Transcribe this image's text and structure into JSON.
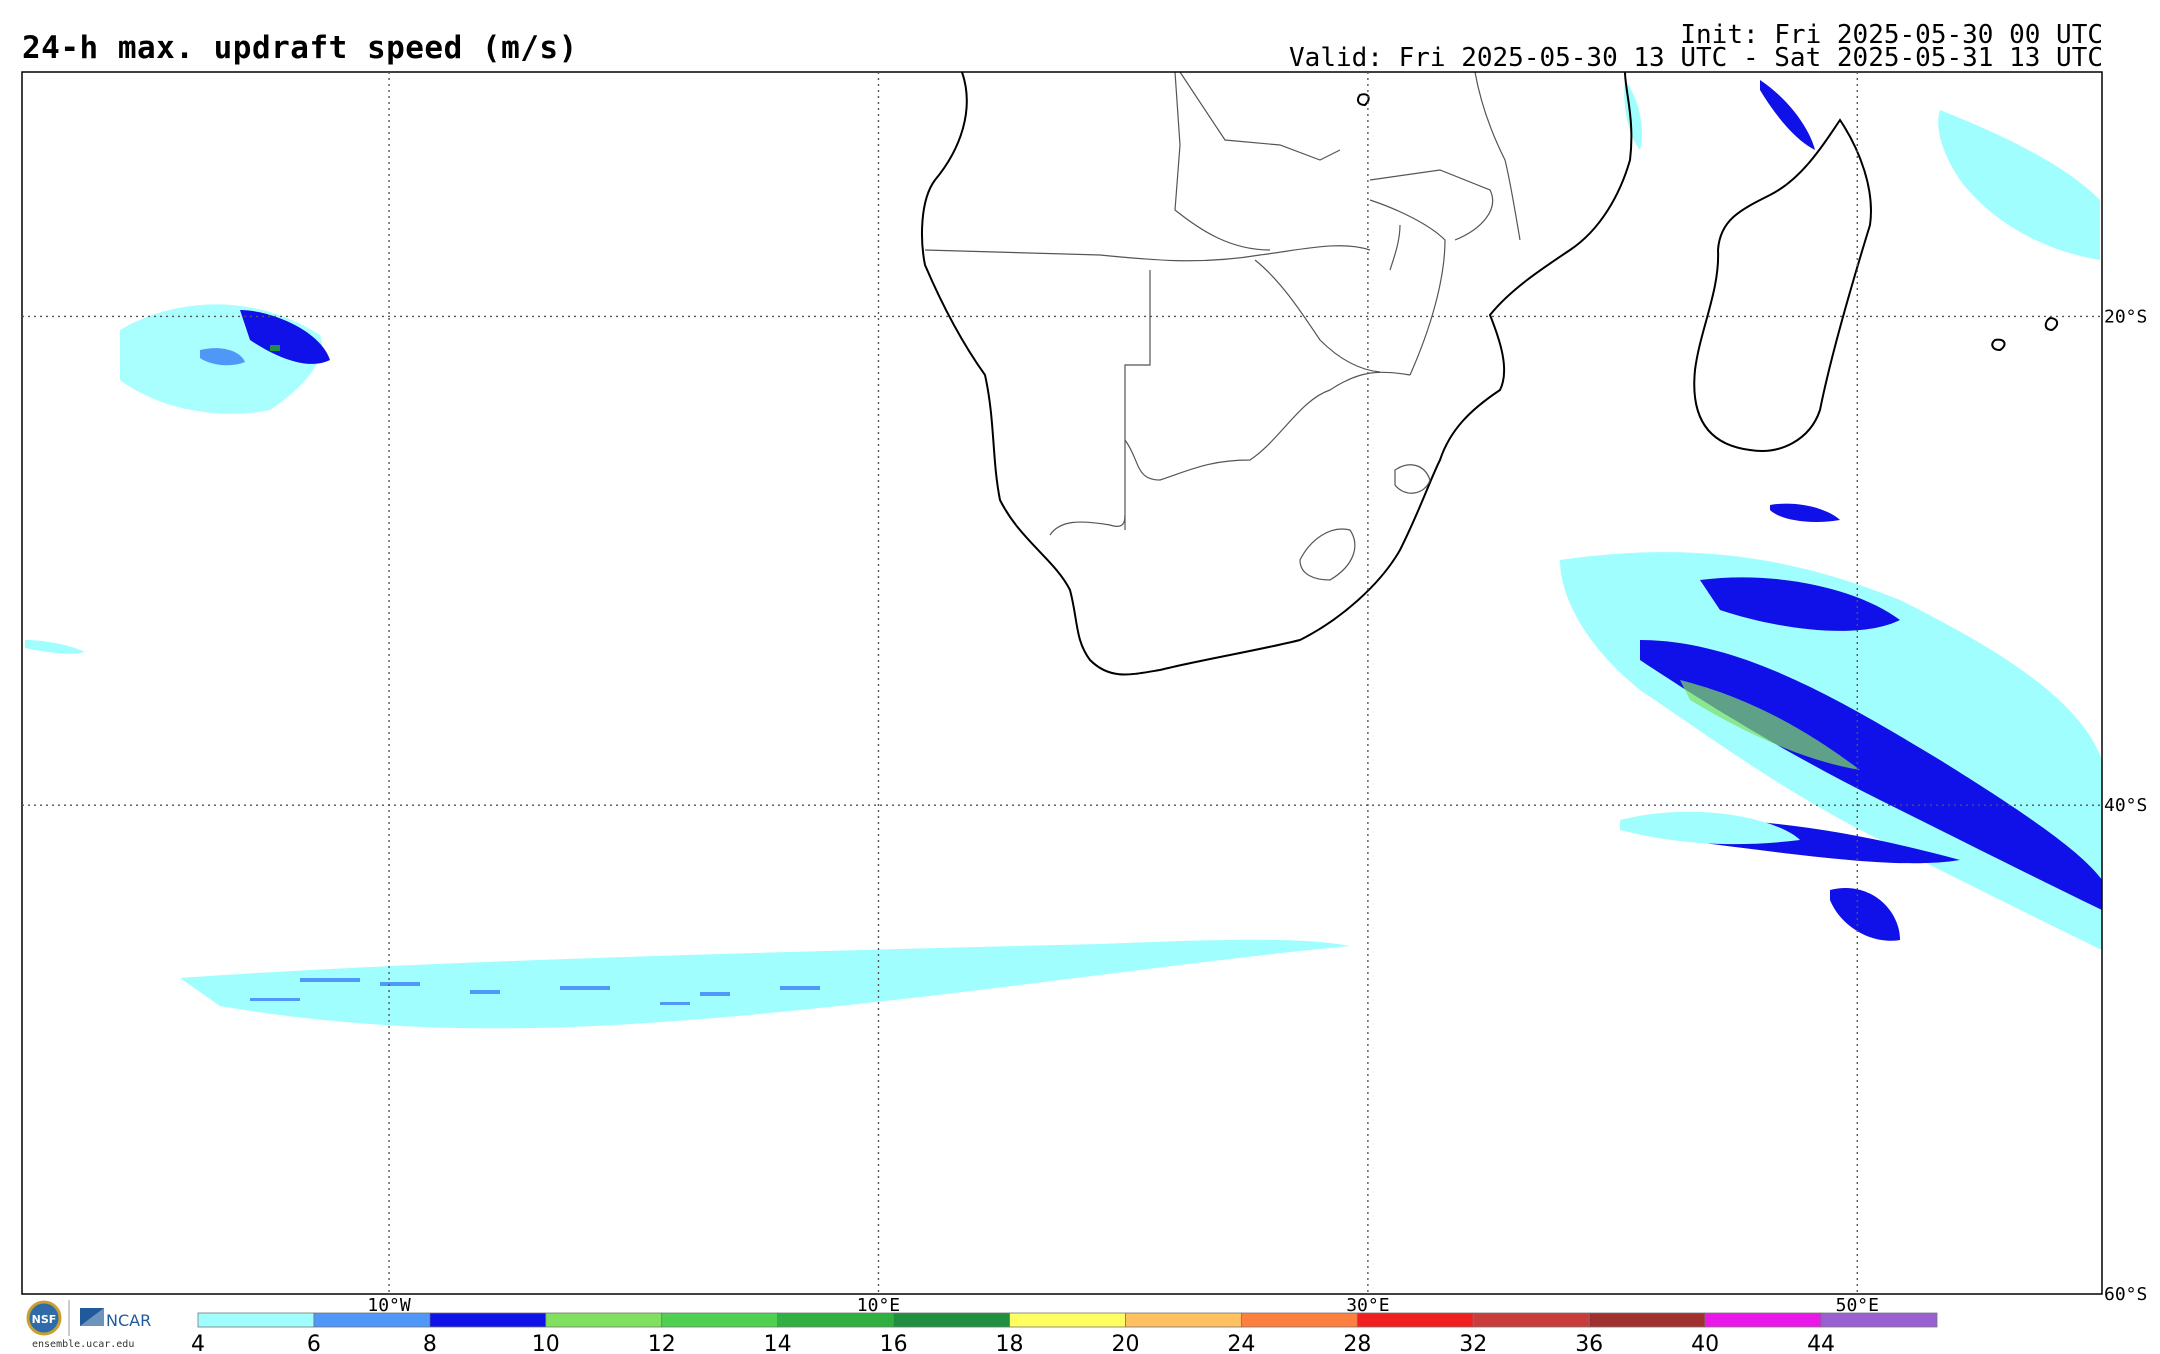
{
  "header": {
    "title": "24-h max. updraft speed (m/s)",
    "init": "Init: Fri 2025-05-30 00 UTC",
    "valid": "Valid: Fri 2025-05-30 13 UTC - Sat 2025-05-31 13 UTC"
  },
  "map": {
    "lon_range": [
      -25,
      60
    ],
    "lat_range": [
      -60,
      -10
    ],
    "gridlines_lon": [
      -10,
      10,
      30,
      50
    ],
    "gridlines_lat": [
      -20,
      -40,
      -60
    ],
    "lon_labels": [
      "10°W",
      "10°E",
      "30°E",
      "50°E"
    ],
    "lat_labels": [
      "20°S",
      "40°S",
      "60°S"
    ],
    "grid": "dotted"
  },
  "colorbar": {
    "labels": [
      "4",
      "6",
      "8",
      "10",
      "12",
      "14",
      "16",
      "18",
      "20",
      "24",
      "28",
      "32",
      "36",
      "40",
      "44"
    ],
    "colors": [
      "#a0fefe",
      "#5098f8",
      "#1010e8",
      "#80e060",
      "#50d050",
      "#30b040",
      "#209040",
      "#fefe60",
      "#fec060",
      "#fe8040",
      "#f02020",
      "#c83c3c",
      "#a03030",
      "#e818e8",
      "#9860d0"
    ]
  },
  "logo": {
    "brand_left": "NSF",
    "brand_right": "NCAR",
    "url": "ensemble.ucar.edu"
  }
}
